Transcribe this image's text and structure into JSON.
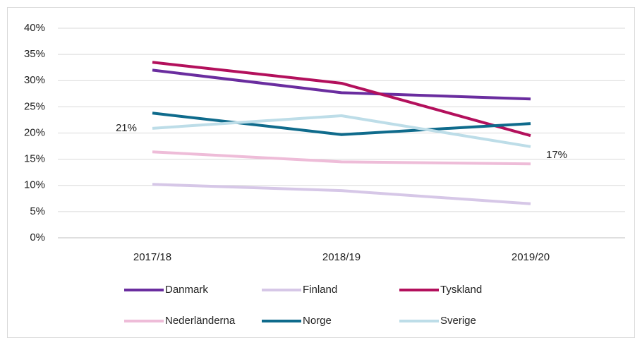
{
  "chart_data": {
    "type": "line",
    "categories": [
      "2017/18",
      "2018/19",
      "2019/20"
    ],
    "series": [
      {
        "name": "Danmark",
        "color": "#6a2d9f",
        "values": [
          32,
          27.7,
          26.5
        ]
      },
      {
        "name": "Finland",
        "color": "#d6c7e7",
        "values": [
          10.2,
          9.0,
          6.5
        ]
      },
      {
        "name": "Tyskland",
        "color": "#b3105c",
        "values": [
          33.5,
          29.5,
          19.5
        ]
      },
      {
        "name": "Nederländerna",
        "color": "#eebcd8",
        "values": [
          16.4,
          14.5,
          14.1
        ]
      },
      {
        "name": "Norge",
        "color": "#0f6b8c",
        "values": [
          23.8,
          19.7,
          21.8
        ]
      },
      {
        "name": "Sverige",
        "color": "#bddde8",
        "values": [
          20.9,
          23.3,
          17.4
        ],
        "value_labels": [
          "21%",
          null,
          "17%"
        ]
      }
    ],
    "ylim": [
      0,
      40
    ],
    "yticks": [
      {
        "value": 0,
        "label": "0%"
      },
      {
        "value": 5,
        "label": "5%"
      },
      {
        "value": 10,
        "label": "10%"
      },
      {
        "value": 15,
        "label": "15%"
      },
      {
        "value": 20,
        "label": "20%"
      },
      {
        "value": 25,
        "label": "25%"
      },
      {
        "value": 30,
        "label": "30%"
      },
      {
        "value": 35,
        "label": "35%"
      },
      {
        "value": 40,
        "label": "40%"
      }
    ],
    "grid": true,
    "legend": "bottom"
  }
}
